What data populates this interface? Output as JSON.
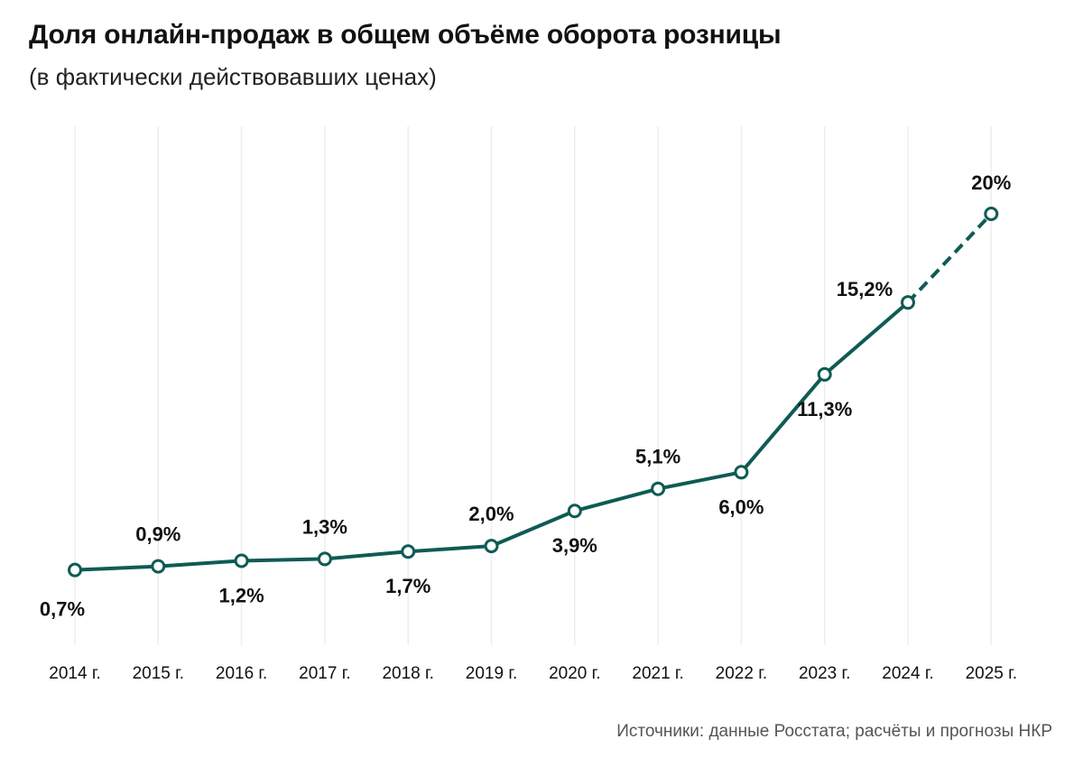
{
  "chart_data": {
    "type": "line",
    "title": "Доля онлайн-продаж в общем объёме оборота розницы",
    "subtitle": "(в фактически действовавших ценах)",
    "categories": [
      "2014 г.",
      "2015 г.",
      "2016 г.",
      "2017 г.",
      "2018 г.",
      "2019 г.",
      "2020 г.",
      "2021 г.",
      "2022 г.",
      "2023 г.",
      "2024 г.",
      "2025 г."
    ],
    "values": [
      0.7,
      0.9,
      1.2,
      1.3,
      1.7,
      2.0,
      3.9,
      5.1,
      6.0,
      11.3,
      15.2,
      20
    ],
    "labels": [
      "0,7%",
      "0,9%",
      "1,2%",
      "1,3%",
      "1,7%",
      "2,0%",
      "3,9%",
      "5,1%",
      "6,0%",
      "11,3%",
      "15,2%",
      "20%"
    ],
    "label_side": [
      "below",
      "above",
      "below",
      "above",
      "below",
      "above",
      "below",
      "above",
      "below",
      "below",
      "above",
      "above"
    ],
    "forecast_from_index": 10,
    "ylim": [
      0,
      20
    ],
    "xlabel": "",
    "ylabel": "",
    "grid": "vertical",
    "legend": "none",
    "colors": {
      "line": "#0f5b54",
      "marker_fill": "#ffffff",
      "grid": "#eeeeee"
    }
  },
  "source": "Источники: данные Росстата; расчёты и прогнозы НКР"
}
